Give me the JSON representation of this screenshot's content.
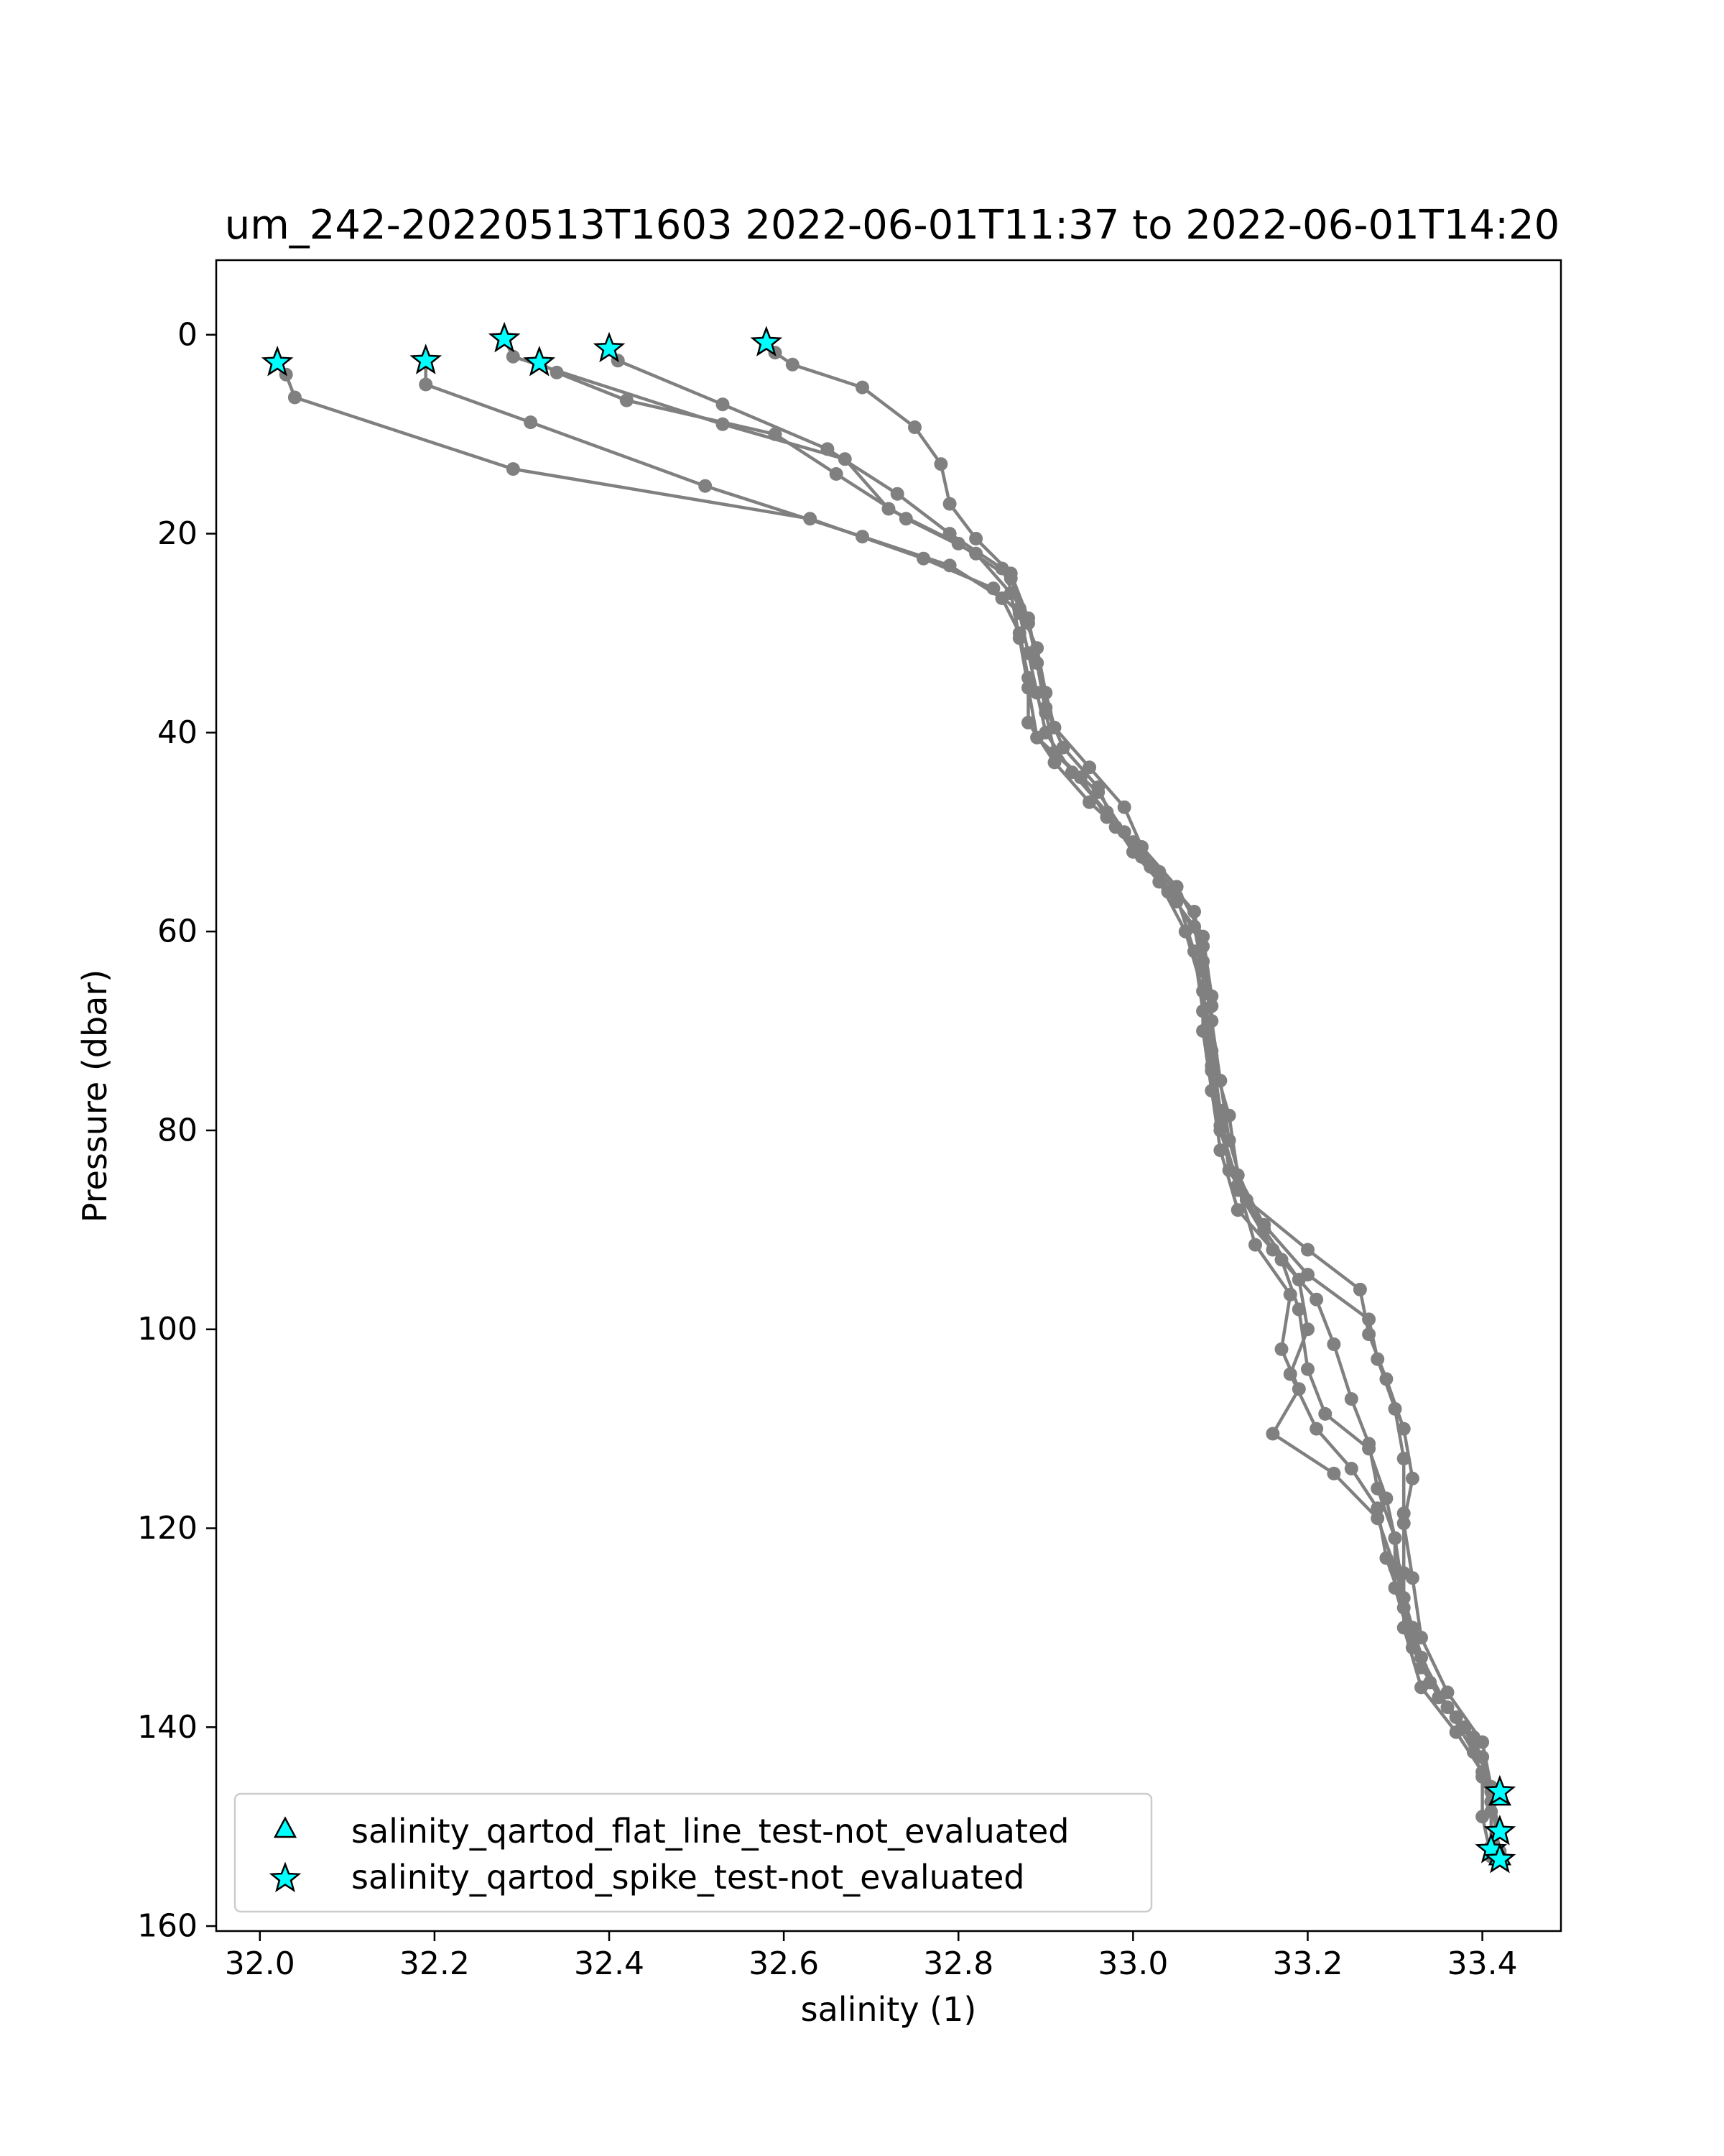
{
  "chart_data": {
    "type": "line",
    "title": "um_242-20220513T1603 2022-06-01T11:37 to 2022-06-01T14:20",
    "xlabel": "salinity (1)",
    "ylabel": "Pressure (dbar)",
    "xlim": [
      31.95,
      33.49
    ],
    "ylim": [
      160.5,
      -7.5
    ],
    "y_inverted": true,
    "xticks": [
      32.0,
      32.2,
      32.4,
      32.6,
      32.8,
      33.0,
      33.2,
      33.4
    ],
    "xtick_labels": [
      "32.0",
      "32.2",
      "32.4",
      "32.6",
      "32.8",
      "33.0",
      "33.2",
      "33.4"
    ],
    "yticks": [
      0,
      20,
      40,
      60,
      80,
      100,
      120,
      140,
      160
    ],
    "ytick_labels": [
      "0",
      "20",
      "40",
      "60",
      "80",
      "100",
      "120",
      "140",
      "160"
    ],
    "grid": false,
    "line_color": "#808080",
    "marker_color": "#00FFFF",
    "legend": {
      "placement": "lower-left",
      "entries": [
        {
          "label": "salinity_qartod_flat_line_test-not_evaluated",
          "marker": "triangle"
        },
        {
          "label": "salinity_qartod_spike_test-not_evaluated",
          "marker": "star"
        }
      ]
    },
    "series": [
      {
        "values": [
          [
            32.02,
            2.8
          ],
          [
            32.03,
            4.0
          ],
          [
            32.04,
            6.3
          ],
          [
            32.29,
            13.5
          ],
          [
            32.63,
            18.5
          ],
          [
            32.76,
            22.5
          ],
          [
            32.84,
            25.5
          ],
          [
            32.87,
            28.0
          ],
          [
            32.88,
            32.0
          ],
          [
            32.89,
            36.0
          ],
          [
            32.9,
            40.0
          ],
          [
            32.93,
            44.0
          ],
          [
            32.97,
            48.0
          ],
          [
            33.0,
            52.0
          ],
          [
            33.04,
            56.0
          ],
          [
            33.07,
            59.5
          ],
          [
            33.08,
            64.0
          ],
          [
            33.08,
            70.0
          ],
          [
            33.09,
            76.0
          ],
          [
            33.1,
            82.0
          ],
          [
            33.12,
            88.0
          ],
          [
            33.17,
            93.0
          ],
          [
            33.19,
            98.0
          ],
          [
            33.2,
            104.0
          ],
          [
            33.22,
            108.5
          ],
          [
            33.27,
            112.0
          ],
          [
            33.29,
            117.0
          ],
          [
            33.3,
            121.0
          ],
          [
            33.3,
            126.0
          ],
          [
            33.32,
            132.0
          ],
          [
            33.35,
            137.0
          ],
          [
            33.39,
            141.0
          ],
          [
            33.41,
            146.5
          ]
        ]
      },
      {
        "values": [
          [
            32.19,
            2.6
          ],
          [
            32.19,
            5.0
          ],
          [
            32.31,
            8.8
          ],
          [
            32.51,
            15.2
          ],
          [
            32.69,
            20.3
          ],
          [
            32.79,
            23.2
          ],
          [
            32.85,
            26.5
          ],
          [
            32.87,
            30.0
          ],
          [
            32.88,
            34.5
          ],
          [
            32.88,
            39.0
          ],
          [
            32.91,
            43.0
          ],
          [
            32.95,
            47.0
          ],
          [
            33.0,
            51.0
          ],
          [
            33.03,
            55.0
          ],
          [
            33.06,
            60.0
          ],
          [
            33.08,
            66.0
          ],
          [
            33.09,
            72.0
          ],
          [
            33.1,
            78.0
          ],
          [
            33.11,
            84.0
          ],
          [
            33.15,
            90.0
          ],
          [
            33.19,
            95.0
          ],
          [
            33.2,
            100.0
          ],
          [
            33.18,
            104.5
          ],
          [
            33.21,
            110.0
          ],
          [
            33.25,
            114.0
          ],
          [
            33.28,
            118.0
          ],
          [
            33.29,
            123.0
          ],
          [
            33.31,
            128.0
          ],
          [
            33.33,
            134.0
          ],
          [
            33.37,
            139.0
          ],
          [
            33.4,
            143.0
          ],
          [
            33.42,
            150.5
          ]
        ]
      },
      {
        "values": [
          [
            32.28,
            0.4
          ],
          [
            32.29,
            2.2
          ],
          [
            32.53,
            9.0
          ],
          [
            32.67,
            12.5
          ],
          [
            32.72,
            17.5
          ],
          [
            32.8,
            21.0
          ],
          [
            32.86,
            24.5
          ],
          [
            32.88,
            29.0
          ],
          [
            32.89,
            33.0
          ],
          [
            32.9,
            37.5
          ],
          [
            32.92,
            41.5
          ],
          [
            32.96,
            45.5
          ],
          [
            32.98,
            49.5
          ],
          [
            33.02,
            53.5
          ],
          [
            33.05,
            57.0
          ],
          [
            33.08,
            61.5
          ],
          [
            33.09,
            67.5
          ],
          [
            33.09,
            73.5
          ],
          [
            33.1,
            79.5
          ],
          [
            33.12,
            85.5
          ],
          [
            33.14,
            91.5
          ],
          [
            33.18,
            96.5
          ],
          [
            33.17,
            102.0
          ],
          [
            33.19,
            106.0
          ],
          [
            33.16,
            110.5
          ],
          [
            33.23,
            114.5
          ],
          [
            33.28,
            119.0
          ],
          [
            33.3,
            124.0
          ],
          [
            33.32,
            130.0
          ],
          [
            33.34,
            135.5
          ],
          [
            33.38,
            140.0
          ],
          [
            33.4,
            145.0
          ],
          [
            33.4,
            149.0
          ],
          [
            33.41,
            153.0
          ]
        ]
      },
      {
        "values": [
          [
            32.32,
            2.8
          ],
          [
            32.34,
            3.8
          ],
          [
            32.42,
            6.6
          ],
          [
            32.59,
            10.0
          ],
          [
            32.66,
            14.0
          ],
          [
            32.74,
            18.5
          ],
          [
            32.82,
            22.0
          ],
          [
            32.86,
            26.0
          ],
          [
            32.87,
            30.5
          ],
          [
            32.88,
            35.5
          ],
          [
            32.89,
            40.5
          ],
          [
            32.94,
            44.5
          ],
          [
            32.97,
            48.5
          ],
          [
            33.01,
            52.5
          ],
          [
            33.05,
            56.5
          ],
          [
            33.07,
            62.0
          ],
          [
            33.08,
            68.0
          ],
          [
            33.09,
            74.0
          ],
          [
            33.1,
            80.0
          ],
          [
            33.12,
            86.0
          ],
          [
            33.16,
            92.0
          ],
          [
            33.21,
            97.0
          ],
          [
            33.23,
            101.5
          ],
          [
            33.25,
            107.0
          ],
          [
            33.27,
            111.5
          ],
          [
            33.28,
            116.0
          ],
          [
            33.3,
            121.0
          ],
          [
            33.31,
            127.0
          ],
          [
            33.33,
            133.0
          ],
          [
            33.36,
            138.0
          ],
          [
            33.39,
            142.5
          ],
          [
            33.41,
            147.5
          ],
          [
            33.42,
            152.5
          ]
        ]
      },
      {
        "values": [
          [
            32.4,
            1.4
          ],
          [
            32.41,
            2.6
          ],
          [
            32.53,
            7.0
          ],
          [
            32.65,
            11.5
          ],
          [
            32.73,
            16.0
          ],
          [
            32.79,
            20.0
          ],
          [
            32.85,
            23.5
          ],
          [
            32.87,
            27.5
          ],
          [
            32.89,
            31.5
          ],
          [
            32.9,
            36.0
          ],
          [
            32.91,
            39.5
          ],
          [
            32.95,
            43.5
          ],
          [
            32.99,
            47.5
          ],
          [
            33.01,
            51.5
          ],
          [
            33.05,
            55.5
          ],
          [
            33.08,
            60.5
          ],
          [
            33.09,
            66.5
          ],
          [
            33.09,
            72.5
          ],
          [
            33.11,
            78.5
          ],
          [
            33.12,
            84.5
          ],
          [
            33.15,
            89.5
          ],
          [
            33.2,
            94.5
          ],
          [
            33.27,
            99.0
          ],
          [
            33.28,
            103.0
          ],
          [
            33.3,
            108.0
          ],
          [
            33.31,
            113.0
          ],
          [
            33.31,
            118.5
          ],
          [
            33.31,
            124.5
          ],
          [
            33.31,
            130.0
          ],
          [
            33.33,
            136.0
          ],
          [
            33.37,
            140.5
          ],
          [
            33.4,
            144.5
          ],
          [
            33.41,
            148.5
          ],
          [
            33.41,
            152.0
          ]
        ]
      },
      {
        "values": [
          [
            32.58,
            0.8
          ],
          [
            32.59,
            1.8
          ],
          [
            32.61,
            3.0
          ],
          [
            32.69,
            5.3
          ],
          [
            32.75,
            9.3
          ],
          [
            32.78,
            13.0
          ],
          [
            32.79,
            17.0
          ],
          [
            32.82,
            20.5
          ],
          [
            32.86,
            24.0
          ],
          [
            32.88,
            28.5
          ],
          [
            32.89,
            33.0
          ],
          [
            32.9,
            38.0
          ],
          [
            32.91,
            42.0
          ],
          [
            32.96,
            46.0
          ],
          [
            32.99,
            50.0
          ],
          [
            33.03,
            54.0
          ],
          [
            33.07,
            58.0
          ],
          [
            33.08,
            63.0
          ],
          [
            33.09,
            69.0
          ],
          [
            33.1,
            75.0
          ],
          [
            33.11,
            81.0
          ],
          [
            33.13,
            87.0
          ],
          [
            33.2,
            92.0
          ],
          [
            33.26,
            96.0
          ],
          [
            33.27,
            100.5
          ],
          [
            33.29,
            105.0
          ],
          [
            33.31,
            110.0
          ],
          [
            33.32,
            115.0
          ],
          [
            33.31,
            119.5
          ],
          [
            33.32,
            125.0
          ],
          [
            33.33,
            131.0
          ],
          [
            33.36,
            136.5
          ],
          [
            33.4,
            141.5
          ],
          [
            33.41,
            146.0
          ],
          [
            33.42,
            153.0
          ]
        ]
      }
    ],
    "spike_test_markers": [
      [
        32.02,
        2.8
      ],
      [
        32.19,
        2.6
      ],
      [
        32.28,
        0.4
      ],
      [
        32.32,
        2.8
      ],
      [
        32.4,
        1.4
      ],
      [
        32.58,
        0.8
      ],
      [
        33.42,
        146.5
      ],
      [
        33.42,
        150.5
      ],
      [
        33.41,
        152.3
      ],
      [
        33.42,
        153.3
      ]
    ],
    "flat_line_test_markers": [
      [
        33.42,
        147.0
      ],
      [
        33.42,
        153.0
      ]
    ]
  }
}
